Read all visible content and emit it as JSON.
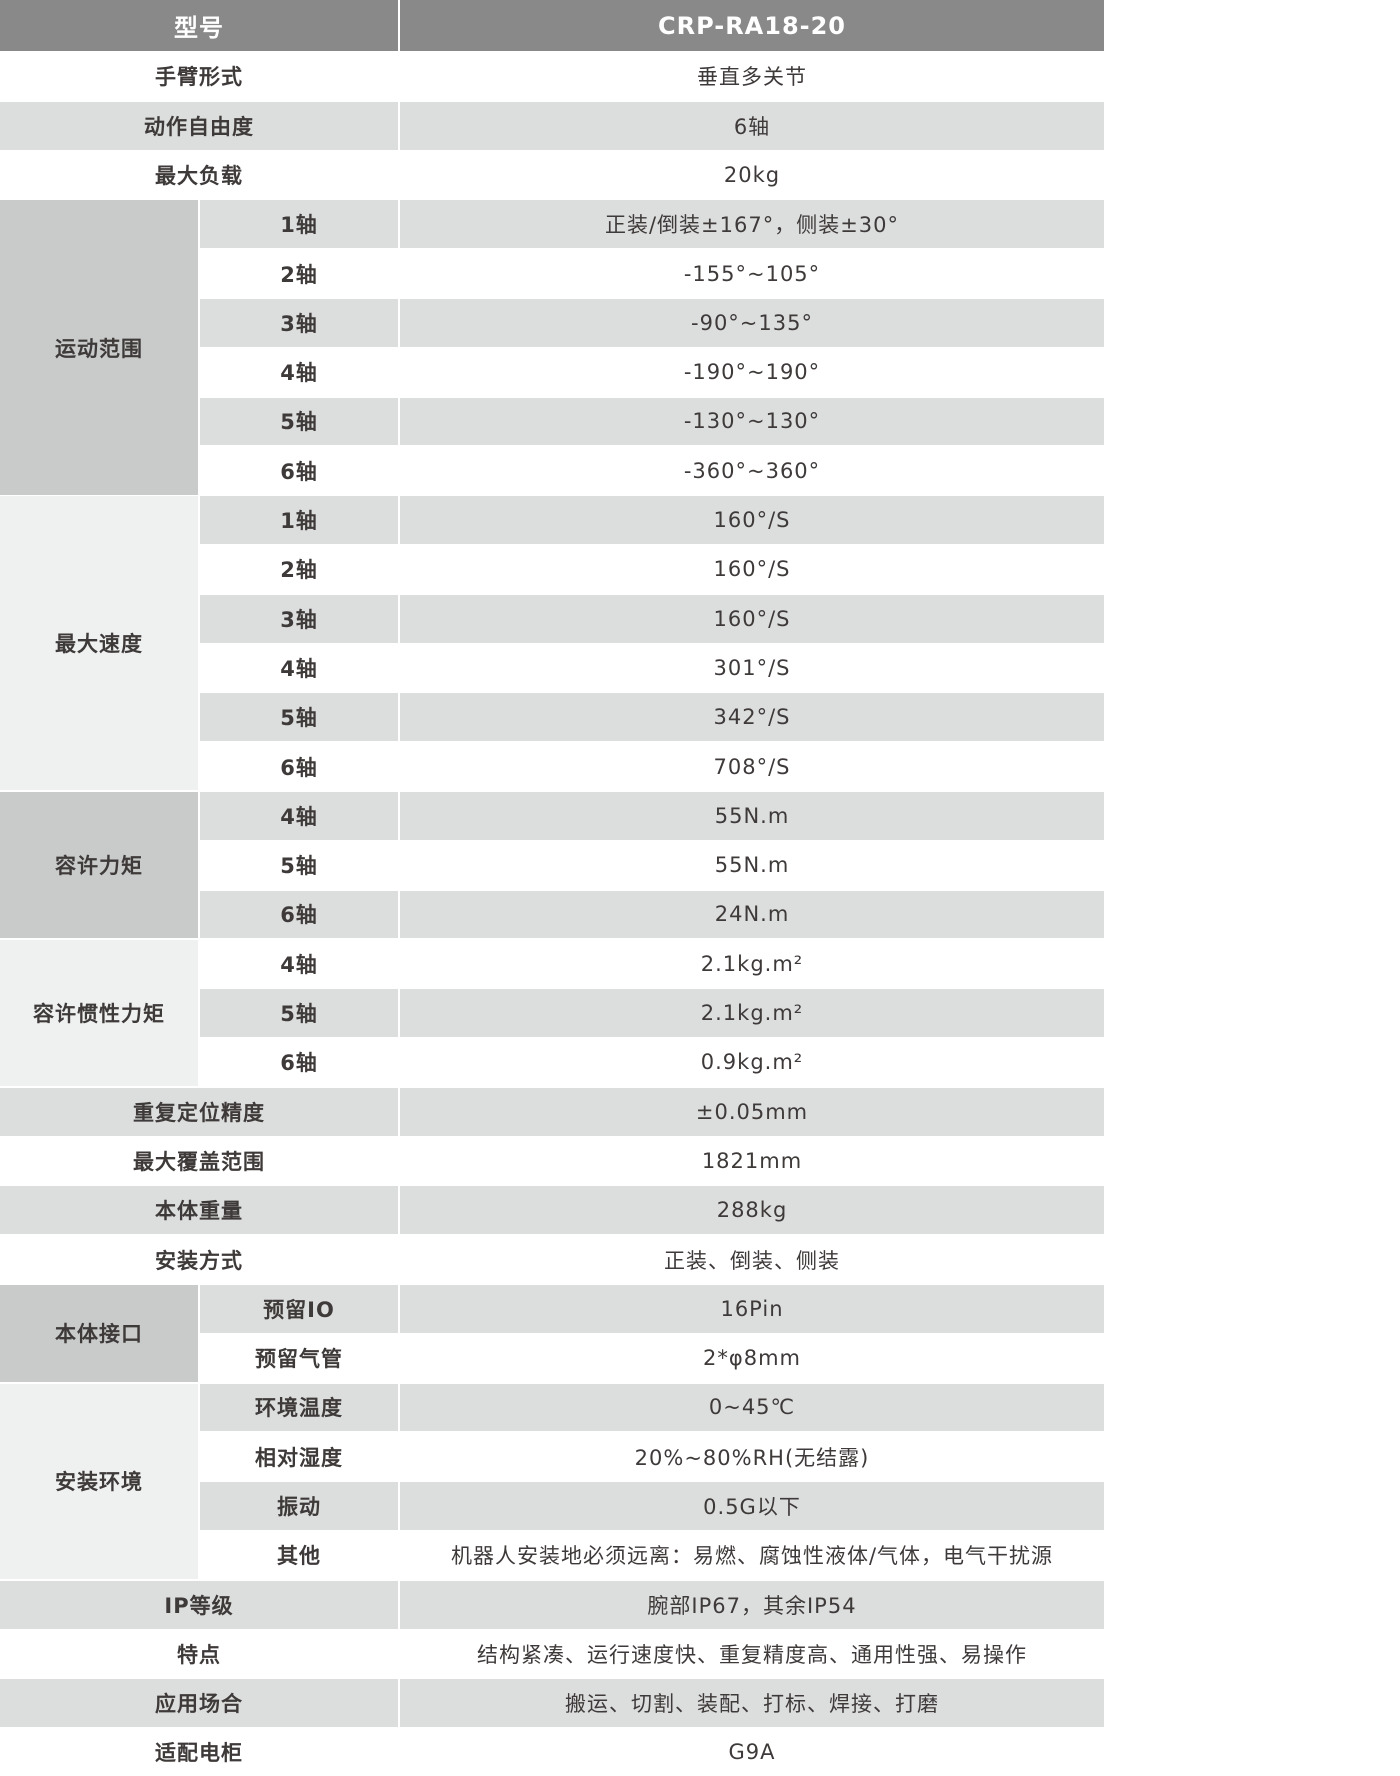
{
  "header": {
    "label": "型号",
    "value": "CRP-RA18-20"
  },
  "colors": {
    "header_bg": "#898989",
    "row_gray": "#dcdddd",
    "group_dark": "#c9caca",
    "group_light": "#eff0f0",
    "text": "#3e3a39"
  },
  "rows": [
    {
      "label": "手臂形式",
      "value": "垂直多关节"
    },
    {
      "label": "动作自由度",
      "value": "6轴"
    },
    {
      "label": "最大负载",
      "value": "20kg"
    },
    {
      "group": "运动范围",
      "tone": "dark",
      "items": [
        {
          "label": "1轴",
          "value": "正装/倒装±167°，侧装±30°"
        },
        {
          "label": "2轴",
          "value": "-155°~105°"
        },
        {
          "label": "3轴",
          "value": "-90°~135°"
        },
        {
          "label": "4轴",
          "value": "-190°~190°"
        },
        {
          "label": "5轴",
          "value": "-130°~130°"
        },
        {
          "label": "6轴",
          "value": "-360°~360°"
        }
      ]
    },
    {
      "group": "最大速度",
      "tone": "light",
      "items": [
        {
          "label": "1轴",
          "value": "160°/S"
        },
        {
          "label": "2轴",
          "value": "160°/S"
        },
        {
          "label": "3轴",
          "value": "160°/S"
        },
        {
          "label": "4轴",
          "value": "301°/S"
        },
        {
          "label": "5轴",
          "value": "342°/S"
        },
        {
          "label": "6轴",
          "value": "708°/S"
        }
      ]
    },
    {
      "group": "容许力矩",
      "tone": "dark",
      "items": [
        {
          "label": "4轴",
          "value": "55N.m"
        },
        {
          "label": "5轴",
          "value": "55N.m"
        },
        {
          "label": "6轴",
          "value": "24N.m"
        }
      ]
    },
    {
      "group": "容许惯性力矩",
      "tone": "light",
      "items": [
        {
          "label": "4轴",
          "value": "2.1kg.m²"
        },
        {
          "label": "5轴",
          "value": "2.1kg.m²"
        },
        {
          "label": "6轴",
          "value": "0.9kg.m²"
        }
      ]
    },
    {
      "label": "重复定位精度",
      "value": "±0.05mm"
    },
    {
      "label": "最大覆盖范围",
      "value": "1821mm"
    },
    {
      "label": "本体重量",
      "value": "288kg"
    },
    {
      "label": "安装方式",
      "value": "正装、倒装、侧装"
    },
    {
      "group": "本体接口",
      "tone": "dark",
      "items": [
        {
          "label": "预留IO",
          "value": "16Pin"
        },
        {
          "label": "预留气管",
          "value": "2*φ8mm"
        }
      ]
    },
    {
      "group": "安装环境",
      "tone": "light",
      "items": [
        {
          "label": "环境温度",
          "value": "0~45℃"
        },
        {
          "label": "相对湿度",
          "value": "20%~80%RH(无结露)"
        },
        {
          "label": "振动",
          "value": "0.5G以下"
        },
        {
          "label": "其他",
          "value": "机器人安装地必须远离：易燃、腐蚀性液体/气体，电气干扰源"
        }
      ]
    },
    {
      "label": "IP等级",
      "value": "腕部IP67，其余IP54"
    },
    {
      "label": "特点",
      "value": "结构紧凑、运行速度快、重复精度高、通用性强、易操作"
    },
    {
      "label": "应用场合",
      "value": "搬运、切割、装配、打标、焊接、打磨"
    },
    {
      "label": "适配电柜",
      "value": "G9A"
    }
  ]
}
